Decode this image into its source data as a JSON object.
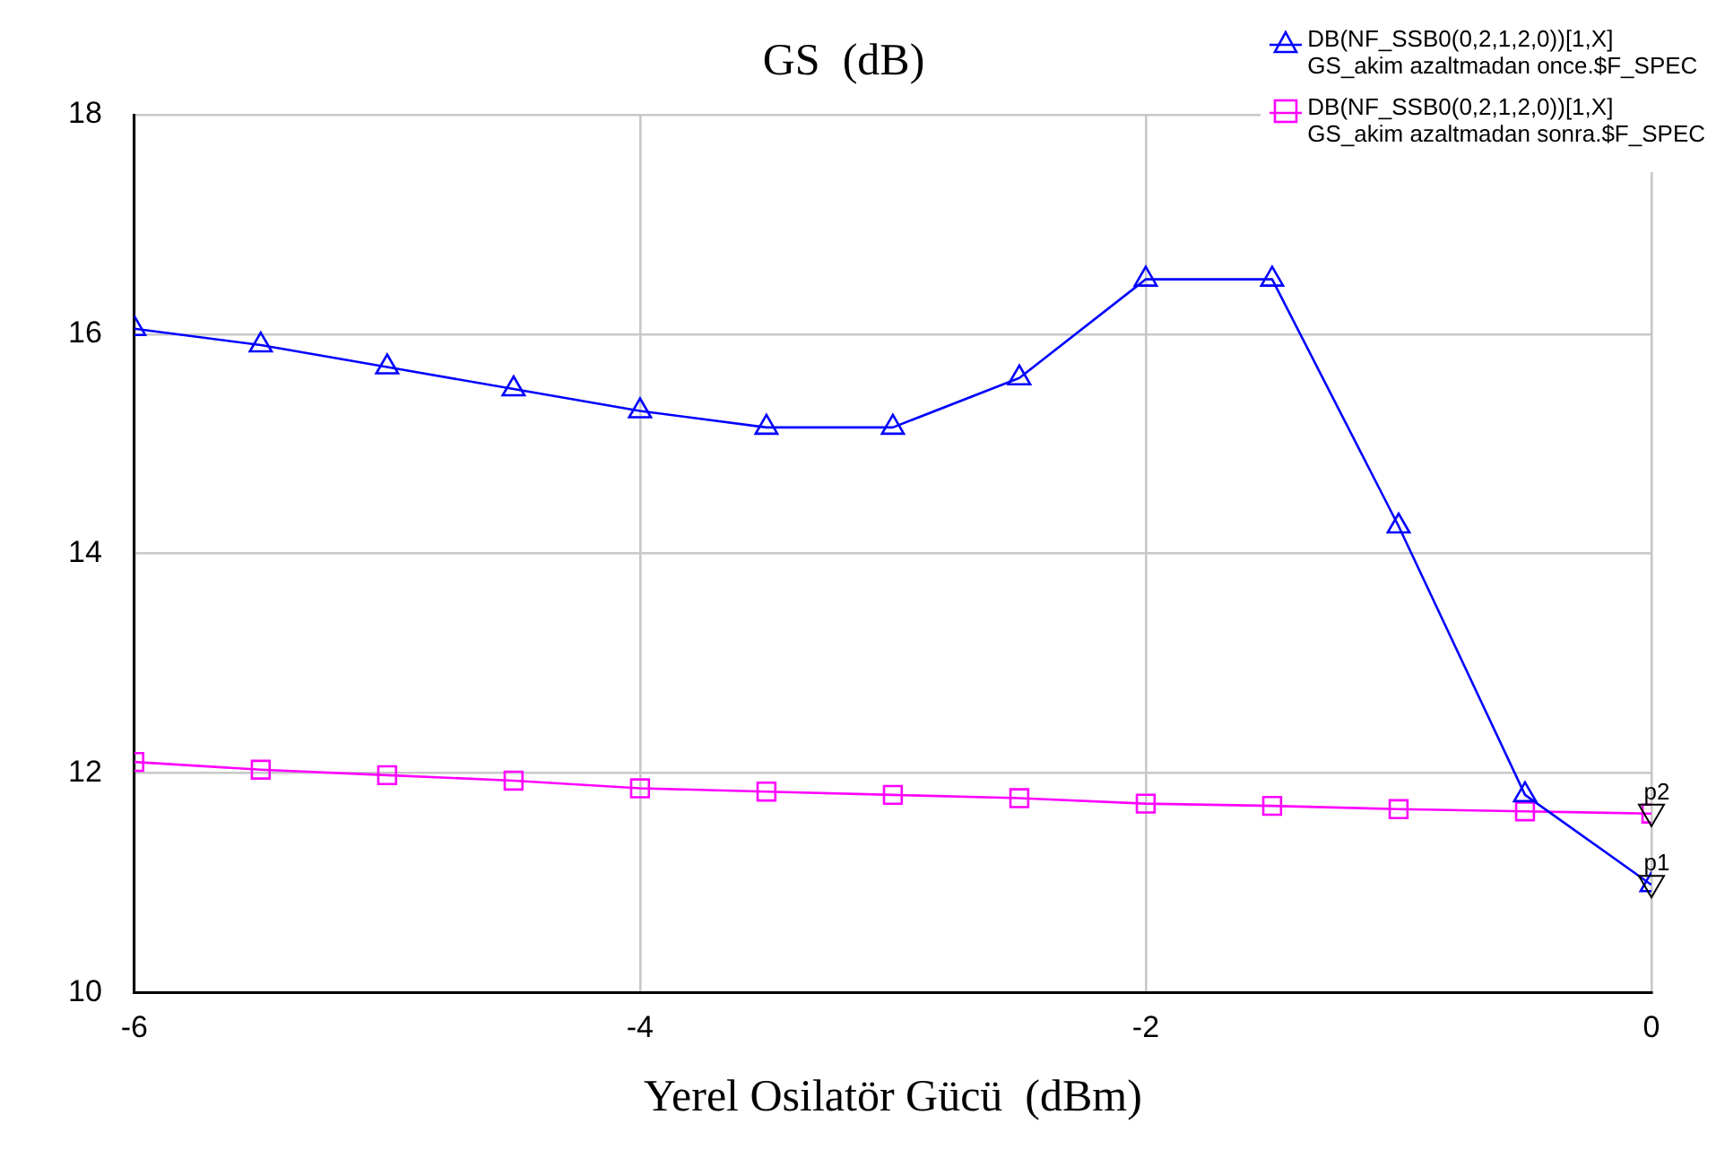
{
  "chart_data": {
    "type": "line",
    "title": "GS  (dB)",
    "xlabel": "Yerel Osilatör Gücü  (dBm)",
    "x": [
      -6,
      -5.5,
      -5,
      -4.5,
      -4,
      -3.5,
      -3,
      -2.5,
      -2,
      -1.5,
      -1,
      -0.5,
      0
    ],
    "series": [
      {
        "name": "DB(NF_SSB0(0,2,1,2,0))[1,X]\nGS_akim azaltmadan once.$F_SPEC",
        "color": "#0000ff",
        "marker": "triangle",
        "values": [
          16.05,
          15.9,
          15.7,
          15.5,
          15.3,
          15.15,
          15.15,
          15.6,
          16.5,
          16.5,
          14.25,
          11.8,
          10.98
        ]
      },
      {
        "name": "DB(NF_SSB0(0,2,1,2,0))[1,X]\nGS_akim azaltmadan sonra.$F_SPEC",
        "color": "#ff00ff",
        "marker": "square",
        "values": [
          12.1,
          12.03,
          11.98,
          11.93,
          11.86,
          11.83,
          11.8,
          11.77,
          11.72,
          11.7,
          11.67,
          11.65,
          11.63
        ]
      }
    ],
    "xlim": [
      -6,
      0
    ],
    "xticks": [
      -6,
      -4,
      -2,
      0
    ],
    "ylim": [
      10,
      18
    ],
    "yticks": [
      10,
      12,
      14,
      16,
      18
    ],
    "grid": true,
    "legend": "top right",
    "annotations": [
      {
        "text": "p1",
        "x": 0,
        "y": 10.98
      },
      {
        "text": "p2",
        "x": 0,
        "y": 11.63
      }
    ]
  }
}
